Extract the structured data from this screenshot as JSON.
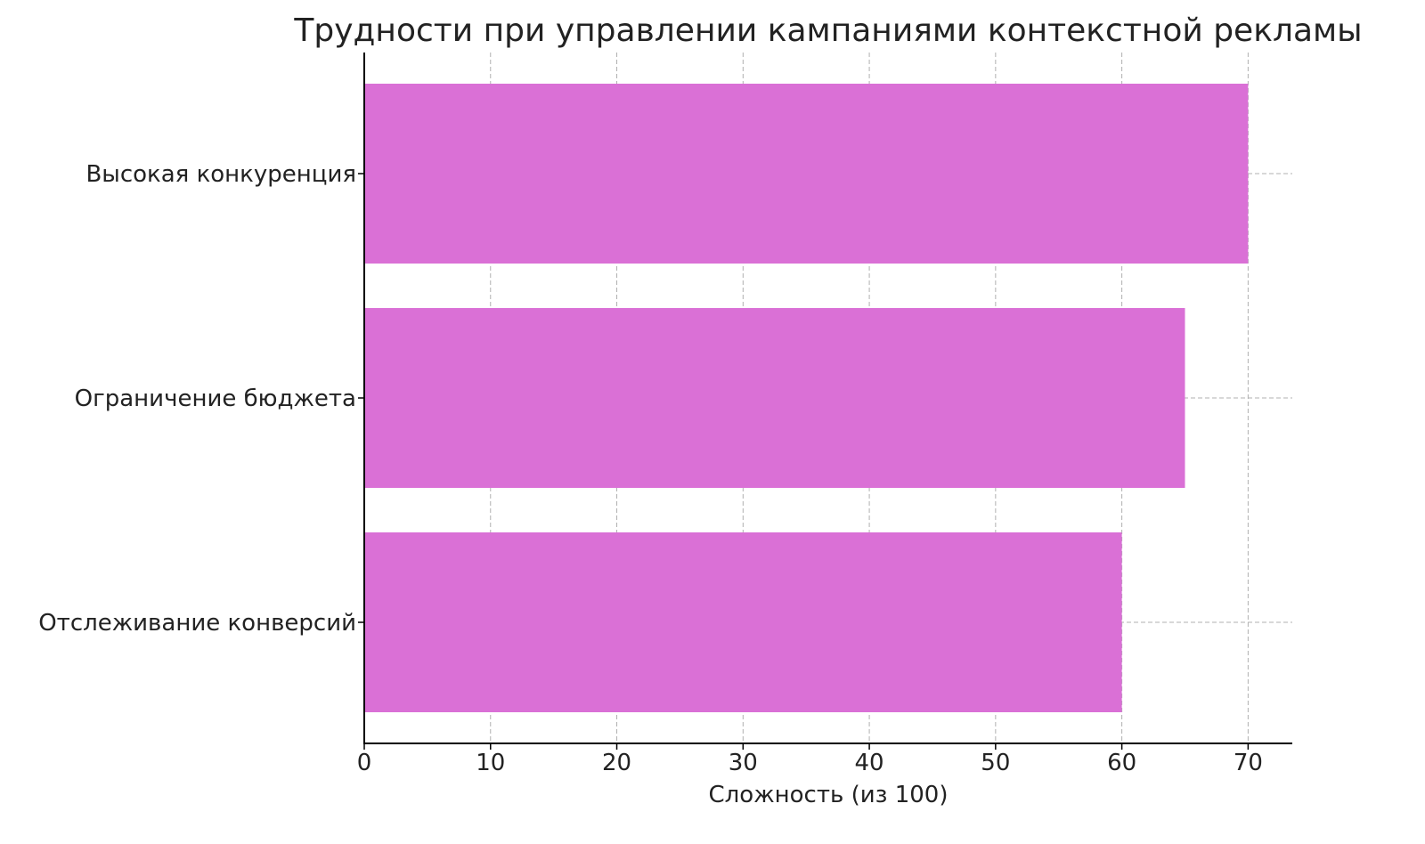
{
  "chart_data": {
    "type": "bar",
    "orientation": "horizontal",
    "title": "Трудности при управлении кампаниями контекстной рекламы",
    "xlabel": "Сложность (из 100)",
    "ylabel": "",
    "categories": [
      "Высокая конкуренция",
      "Ограничение бюджета",
      "Отслеживание конверсий"
    ],
    "values": [
      70,
      65,
      60
    ],
    "xlim": [
      0,
      73.5
    ],
    "xticks": [
      0,
      10,
      20,
      30,
      40,
      50,
      60,
      70
    ],
    "grid": true,
    "bar_color": "#DA70D6"
  }
}
